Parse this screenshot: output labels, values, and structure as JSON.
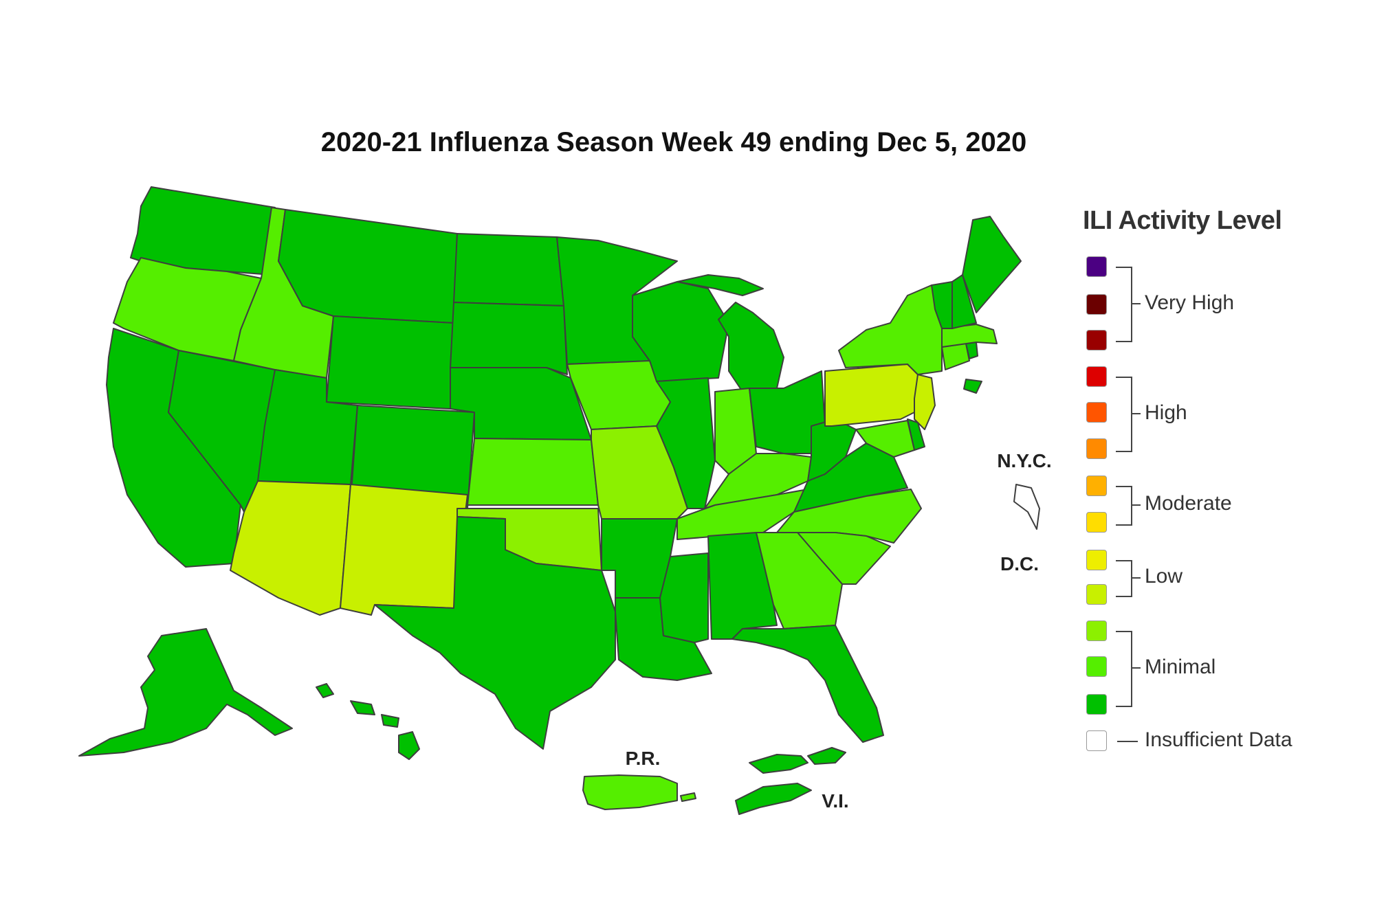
{
  "title": "2020-21 Influenza Season Week 49 ending Dec 5, 2020",
  "colors": {
    "level_1": "#00c000",
    "level_2": "#55ee00",
    "level_3": "#8cf000",
    "level_4": "#c8f000",
    "level_5": "#eeee00",
    "level_6": "#ffdd00",
    "level_7": "#ffb000",
    "level_8": "#ff8a00",
    "level_9": "#ff5500",
    "level_10": "#dd0000",
    "level_11": "#990000",
    "level_12": "#6b0000",
    "level_13": "#4b0082",
    "insufficient": "#ffffff"
  },
  "legend": {
    "title": "ILI Activity Level",
    "groups": [
      {
        "label": "Very High"
      },
      {
        "label": "High"
      },
      {
        "label": "Moderate"
      },
      {
        "label": "Low"
      },
      {
        "label": "Minimal"
      }
    ],
    "insufficient_label": "Insufficient Data"
  },
  "territory_labels": {
    "nyc": "N.Y.C.",
    "dc": "D.C.",
    "pr": "P.R.",
    "vi": "V.I."
  },
  "state_levels": {
    "WA": 1,
    "OR": 2,
    "CA": 1,
    "NV": 1,
    "ID": 2,
    "MT": 1,
    "WY": 1,
    "UT": 1,
    "AZ": 4,
    "CO": 1,
    "NM": 4,
    "ND": 1,
    "SD": 1,
    "NE": 1,
    "KS": 2,
    "OK": 3,
    "TX": 1,
    "MN": 1,
    "IA": 2,
    "MO": 3,
    "AR": 1,
    "LA": 1,
    "WI": 1,
    "IL": 1,
    "MS": 1,
    "MI": 1,
    "IN": 2,
    "KY": 2,
    "TN": 2,
    "AL": 1,
    "OH": 1,
    "WV": 1,
    "VA": 1,
    "NC": 2,
    "SC": 2,
    "GA": 2,
    "FL": 1,
    "PA": 4,
    "NY": 2,
    "NJ": 4,
    "DE": 1,
    "MD": 2,
    "CT": 2,
    "RI": 1,
    "MA": 2,
    "VT": 1,
    "NH": 1,
    "ME": 1,
    "AK": 1,
    "HI": 1,
    "PR": 2,
    "VI": 1,
    "NYC": 1,
    "DC": 0
  }
}
